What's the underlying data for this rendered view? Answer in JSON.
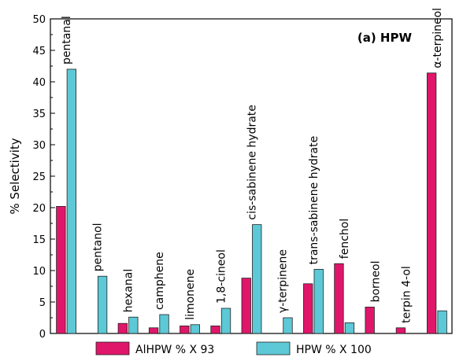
{
  "chart_data": {
    "type": "bar",
    "title": "(a) HPW",
    "xlabel": "",
    "ylabel": "% Selectivity",
    "ylim": [
      0,
      50
    ],
    "yticks": [
      0,
      5,
      10,
      15,
      20,
      25,
      30,
      35,
      40,
      45,
      50
    ],
    "grid": false,
    "legend_position": "bottom",
    "categories": [
      "pentanal",
      "pentanol",
      "hexanal",
      "camphene",
      "limonene",
      "1,8-cineol",
      "cis-sabinene hydrate",
      "γ-terpinene",
      "trans-sabinene hydrate",
      "fenchol",
      "borneol",
      "terpin 4-ol",
      "α-terpineol"
    ],
    "series": [
      {
        "name": "AlHPW % X 93",
        "color": "#e0166a",
        "values": [
          20.2,
          0,
          1.6,
          0.9,
          1.2,
          1.2,
          8.8,
          0,
          7.9,
          11.1,
          4.2,
          0.9,
          41.4
        ]
      },
      {
        "name": "HPW % X 100",
        "color": "#5dc8d6",
        "values": [
          42.0,
          9.1,
          2.6,
          3.0,
          1.4,
          4.0,
          17.3,
          2.5,
          10.2,
          1.7,
          0,
          0,
          3.6
        ]
      }
    ]
  }
}
